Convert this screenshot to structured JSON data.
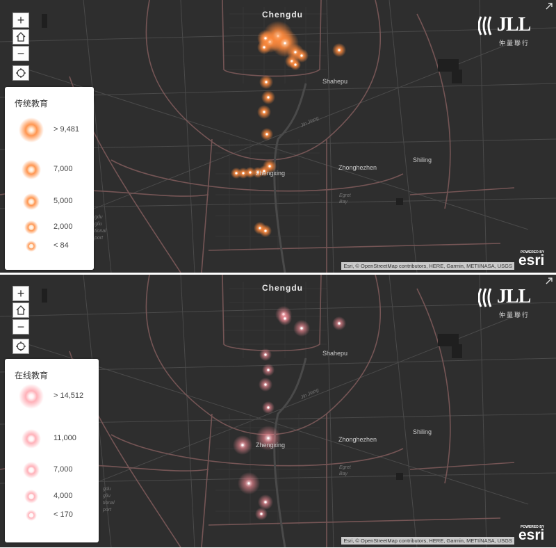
{
  "controls": {
    "zoom_in_label": "+",
    "zoom_out_label": "−",
    "home_icon": "home-icon",
    "locate_icon": "locate-icon"
  },
  "branding": {
    "logo_text": "JLL",
    "logo_subtext": "仲量聯行",
    "esri_powered": "POWERED BY",
    "esri_word": "esri"
  },
  "attribution": "Esri, © OpenStreetMap contributors, HERE, Garmin, METI/NASA, USGS",
  "places": {
    "city": "Chengdu",
    "shahepu": "Shahepu",
    "zhonghezhen": "Zhonghezhen",
    "shiling": "Shiling",
    "zhengxing": "Zhengxing",
    "jinjiang": "Jin Jiang",
    "egret_bay_1": "Egret",
    "egret_bay_2": "Bay",
    "airport_1": "gdu",
    "airport_2": "gliu",
    "airport_3": "tional",
    "airport_4": "port"
  },
  "maps": [
    {
      "legend": {
        "title": "传统教育",
        "items": [
          {
            "label": "> 9,481",
            "value": 9481
          },
          {
            "label": "7,000",
            "value": 7000
          },
          {
            "label": "5,000",
            "value": 5000
          },
          {
            "label": "2,000",
            "value": 2000
          },
          {
            "label": "< 84",
            "value": 84
          }
        ]
      },
      "heat_color": "#ff8a3d",
      "core_color": "#ffe2c6"
    },
    {
      "legend": {
        "title": "在线教育",
        "items": [
          {
            "label": "> 14,512",
            "value": 14512
          },
          {
            "label": "11,000",
            "value": 11000
          },
          {
            "label": "7,000",
            "value": 7000
          },
          {
            "label": "4,000",
            "value": 4000
          },
          {
            "label": "< 170",
            "value": 170
          }
        ]
      },
      "heat_color": "#ff8f9a",
      "core_color": "#fff0f2"
    }
  ]
}
